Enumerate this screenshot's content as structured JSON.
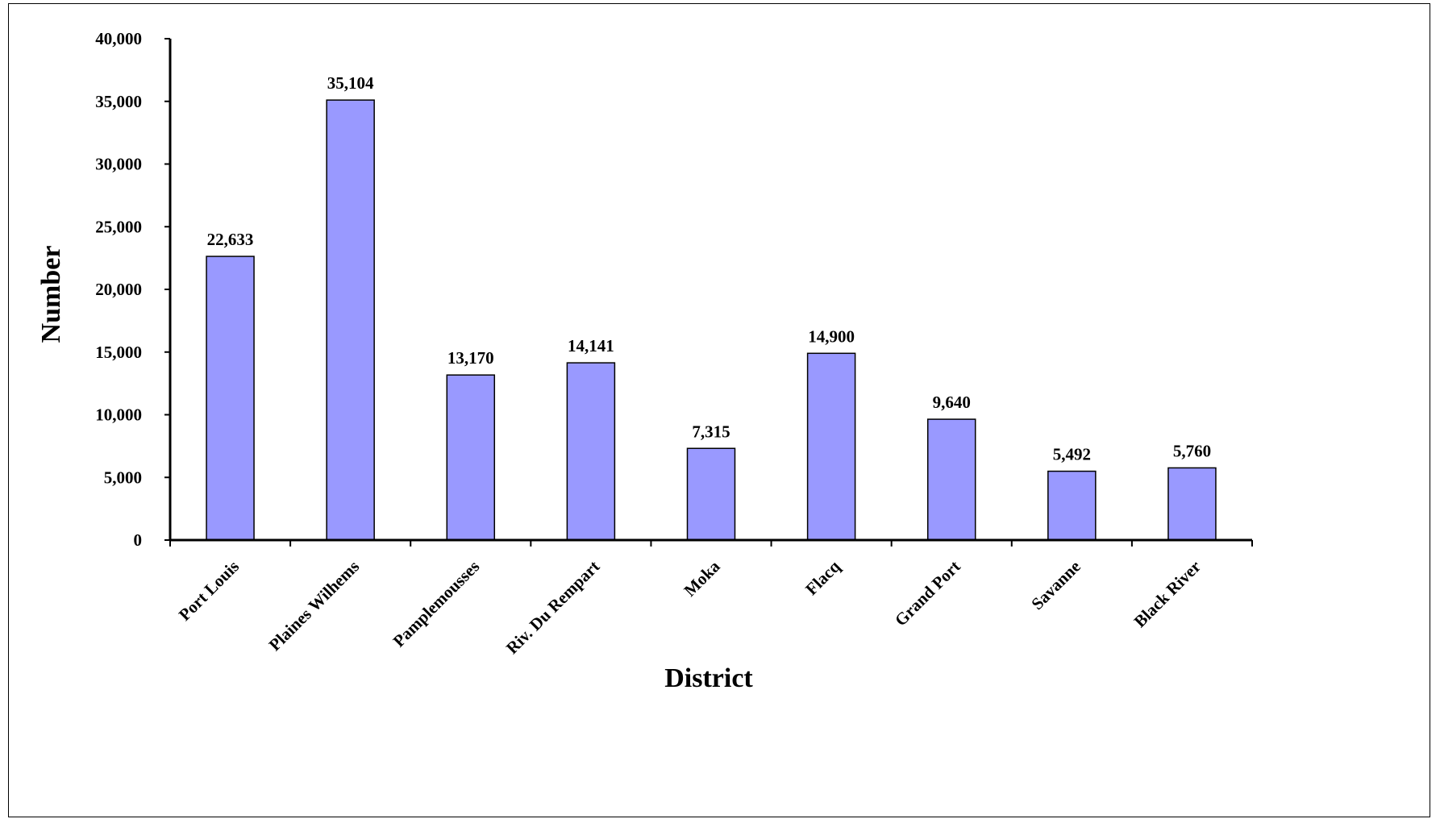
{
  "chart_data": {
    "type": "bar",
    "title": "",
    "xlabel": "District",
    "ylabel": "Number",
    "categories": [
      "Port Louis",
      "Plaines Wilhems",
      "Pamplemousses",
      "Riv. Du Rempart",
      "Moka",
      "Flacq",
      "Grand Port",
      "Savanne",
      "Black River"
    ],
    "values": [
      22633,
      35104,
      13170,
      14141,
      7315,
      14900,
      9640,
      5492,
      5760
    ],
    "value_labels": [
      "22,633",
      "35,104",
      "13,170",
      "14,141",
      "7,315",
      "14,900",
      "9,640",
      "5,492",
      "5,760"
    ],
    "ylim": [
      0,
      40000
    ],
    "yticks": [
      0,
      5000,
      10000,
      15000,
      20000,
      25000,
      30000,
      35000,
      40000
    ],
    "ytick_labels": [
      "0",
      "5,000",
      "10,000",
      "15,000",
      "20,000",
      "25,000",
      "30,000",
      "35,000",
      "40,000"
    ],
    "grid": false,
    "legend": "none",
    "bar_color": "#9999ff",
    "bar_edge_color": "#000000"
  }
}
